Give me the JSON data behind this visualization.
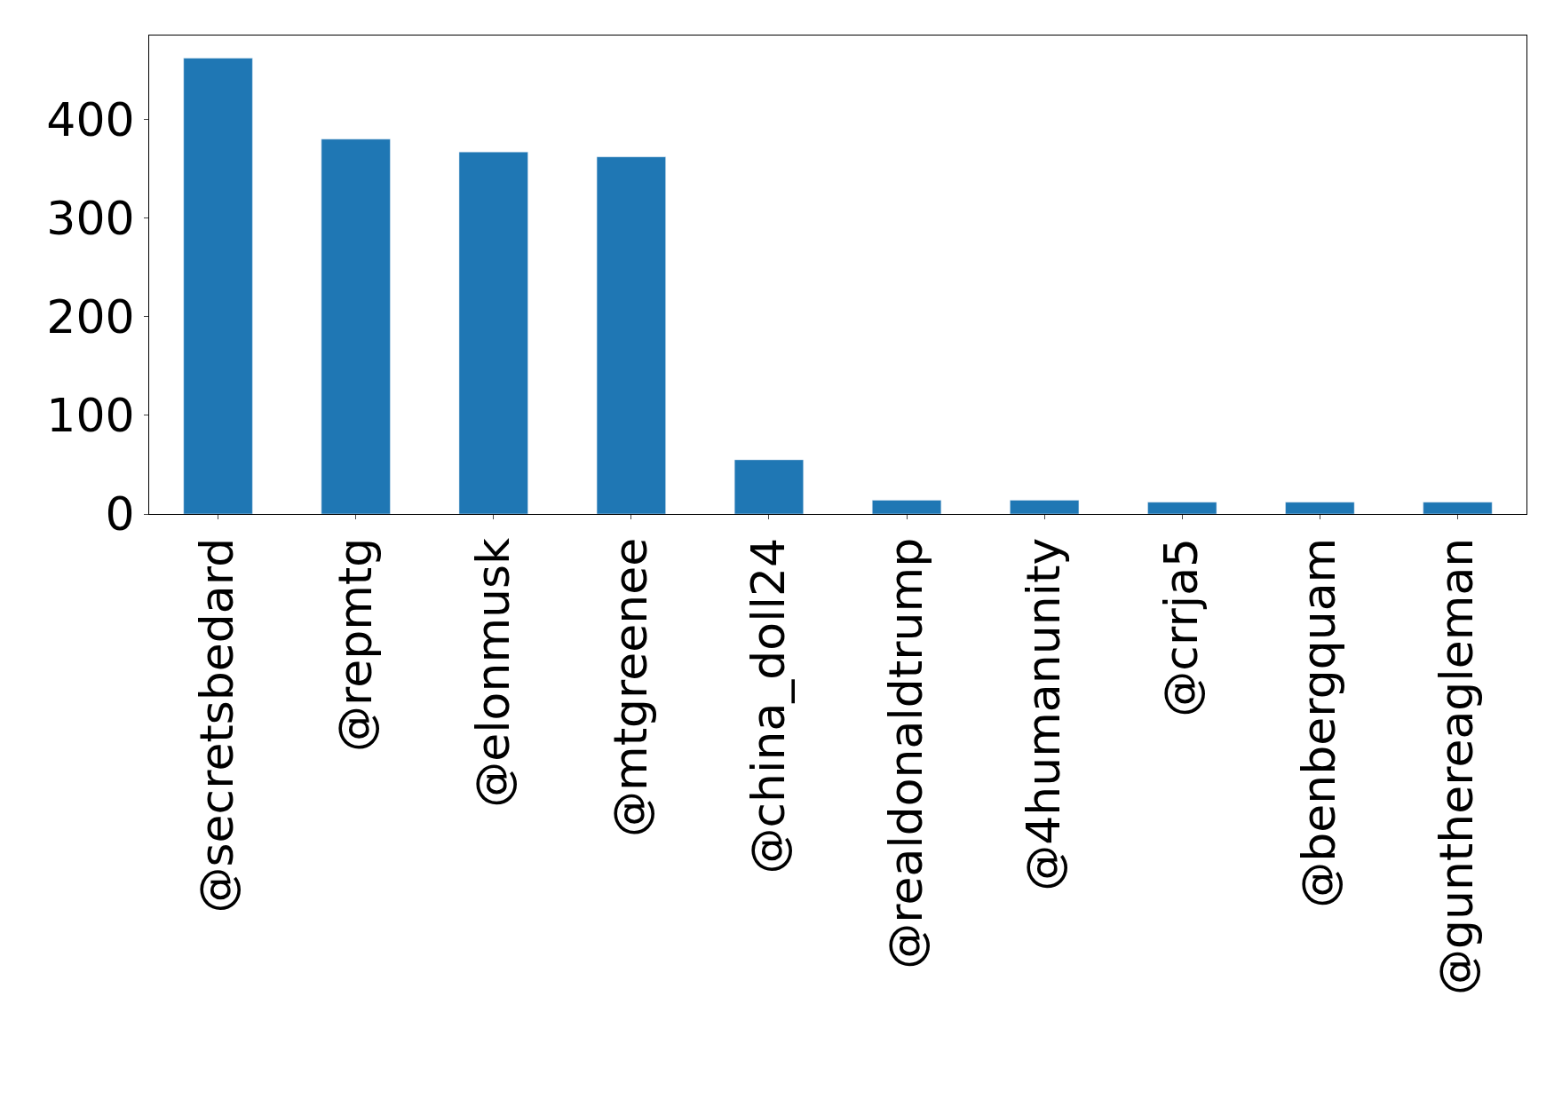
{
  "chart_data": {
    "type": "bar",
    "categories": [
      "@secretsbedard",
      "@repmtg",
      "@elonmusk",
      "@mtgreenee",
      "@china_doll24",
      "@realdonaldtrump",
      "@4humanunity",
      "@crrja5",
      "@benbergquam",
      "@gunthereagleman"
    ],
    "values": [
      462,
      380,
      367,
      362,
      55,
      14,
      14,
      12,
      12,
      12
    ],
    "color": "#1f77b4",
    "ylim": [
      0,
      485
    ],
    "yticks": [
      0,
      100,
      200,
      300,
      400
    ]
  }
}
